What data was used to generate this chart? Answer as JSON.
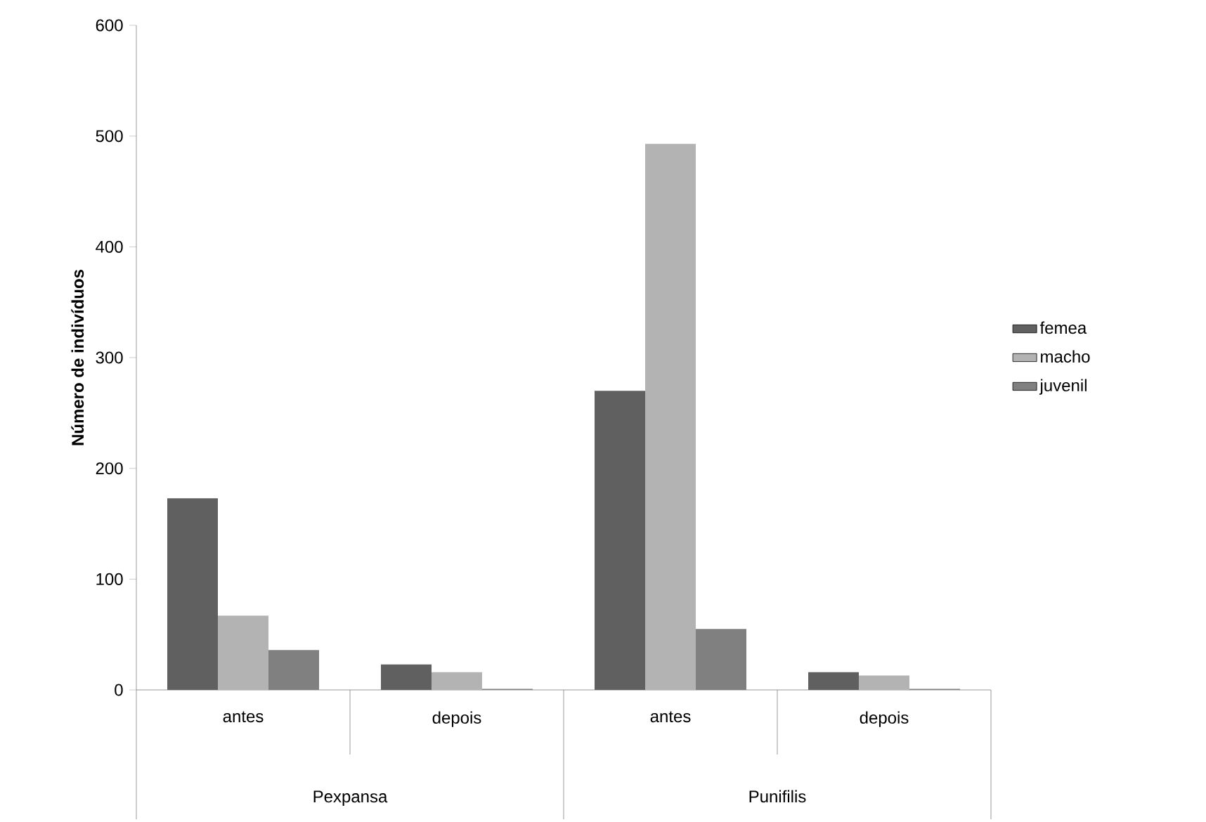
{
  "chart_data": {
    "type": "bar",
    "ylabel": "Número de indivíduos",
    "categories": [
      "antes",
      "depois",
      "antes",
      "depois"
    ],
    "series": [
      {
        "name": "femea",
        "color": "#606060",
        "values": [
          173,
          23,
          270,
          16
        ]
      },
      {
        "name": "macho",
        "color": "#b3b3b3",
        "values": [
          67,
          16,
          493,
          13
        ]
      },
      {
        "name": "juvenil",
        "color": "#808080",
        "values": [
          36,
          1,
          55,
          1
        ]
      }
    ],
    "ylim": [
      0,
      600
    ],
    "yticks": [
      0,
      100,
      200,
      300,
      400,
      500,
      600
    ],
    "legend": "right",
    "grid": false,
    "annotations": [
      "Pexpansa",
      "Punifilis"
    ]
  }
}
